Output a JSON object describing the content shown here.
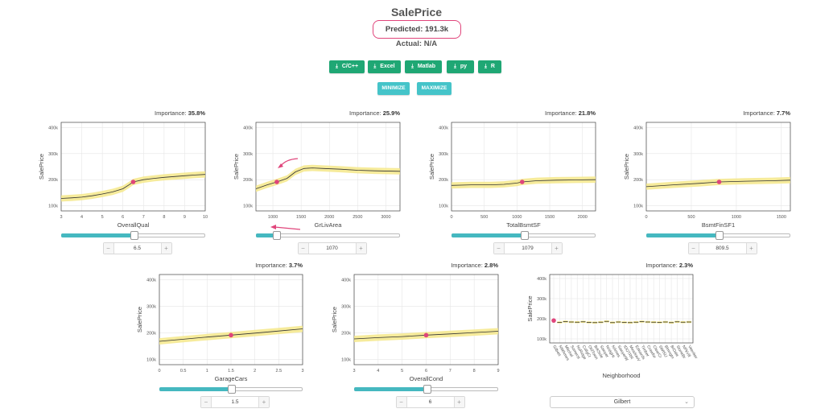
{
  "header": {
    "title": "SalePrice",
    "predicted": "Predicted: 191.3k",
    "actual": "Actual: N/A"
  },
  "export_buttons": [
    {
      "label": "C/C++",
      "icon": "download-icon"
    },
    {
      "label": "Excel",
      "icon": "download-icon"
    },
    {
      "label": "Matlab",
      "icon": "download-icon"
    },
    {
      "label": "py",
      "icon": "download-icon"
    },
    {
      "label": "R",
      "icon": "download-icon"
    }
  ],
  "control_buttons": {
    "minimize": "MINIMIZE",
    "maximize": "MAXIMIZE"
  },
  "colors": {
    "accent_green": "#1fa774",
    "accent_teal": "#45c4c9",
    "marker": "#e0457b",
    "band": "#f5e88a",
    "line": "#333333"
  },
  "chart_data": [
    {
      "type": "line",
      "id": "OverallQual",
      "importance_label": "Importance:",
      "importance": "35.8%",
      "xlabel": "OverallQual",
      "ylabel": "SalePrice",
      "xlim": [
        3,
        10
      ],
      "ylim": [
        80000,
        420000
      ],
      "xticks": [
        3,
        4,
        5,
        6,
        7,
        8,
        9,
        10
      ],
      "xtick_labels": [
        "3",
        "4",
        "5",
        "6",
        "7",
        "8",
        "9",
        "10"
      ],
      "yticks": [
        100000,
        200000,
        300000,
        400000
      ],
      "ytick_labels": [
        "100k",
        "200k",
        "300k",
        "400k"
      ],
      "x": [
        3,
        3.5,
        4,
        4.5,
        5,
        5.5,
        6,
        6.3,
        6.5,
        7,
        7.5,
        8,
        8.5,
        9,
        9.5,
        10
      ],
      "y": [
        128000,
        130000,
        133000,
        138000,
        145000,
        153000,
        165000,
        180000,
        191300,
        200000,
        205000,
        209000,
        212000,
        215000,
        218000,
        220000
      ],
      "band": 12000,
      "current": {
        "x": 6.5,
        "y": 191300
      },
      "control": {
        "type": "slider-stepper",
        "value": "6.5",
        "fraction": 0.5
      }
    },
    {
      "type": "line",
      "id": "GrLivArea",
      "importance_label": "Importance:",
      "importance": "25.9%",
      "xlabel": "GrLivArea",
      "ylabel": "SalePrice",
      "xlim": [
        700,
        3250
      ],
      "ylim": [
        80000,
        420000
      ],
      "xticks": [
        1000,
        1500,
        2000,
        2500,
        3000
      ],
      "xtick_labels": [
        "1000",
        "1500",
        "2000",
        "2500",
        "3000"
      ],
      "yticks": [
        100000,
        200000,
        300000,
        400000
      ],
      "ytick_labels": [
        "100k",
        "200k",
        "300k",
        "400k"
      ],
      "x": [
        700,
        900,
        1070,
        1250,
        1400,
        1550,
        1700,
        1900,
        2200,
        2500,
        2800,
        3250
      ],
      "y": [
        165000,
        180000,
        191300,
        205000,
        230000,
        243000,
        245000,
        243000,
        240000,
        236000,
        234000,
        232000
      ],
      "band": 12000,
      "current": {
        "x": 1070,
        "y": 191300
      },
      "control": {
        "type": "slider-stepper",
        "value": "1070",
        "fraction": 0.14
      }
    },
    {
      "type": "line",
      "id": "TotalBsmtSF",
      "importance_label": "Importance:",
      "importance": "21.8%",
      "xlabel": "TotalBsmtSF",
      "ylabel": "SalePrice",
      "xlim": [
        0,
        2200
      ],
      "ylim": [
        80000,
        420000
      ],
      "xticks": [
        0,
        500,
        1000,
        1500,
        2000
      ],
      "xtick_labels": [
        "0",
        "500",
        "1000",
        "1500",
        "2000"
      ],
      "yticks": [
        100000,
        200000,
        300000,
        400000
      ],
      "ytick_labels": [
        "100k",
        "200k",
        "300k",
        "400k"
      ],
      "x": [
        0,
        300,
        600,
        800,
        1000,
        1079,
        1300,
        1600,
        1900,
        2200
      ],
      "y": [
        178000,
        180000,
        180000,
        182000,
        187000,
        191300,
        196000,
        198000,
        199000,
        200000
      ],
      "band": 12000,
      "current": {
        "x": 1079,
        "y": 191300
      },
      "control": {
        "type": "slider-stepper",
        "value": "1079",
        "fraction": 0.5
      }
    },
    {
      "type": "line",
      "id": "BsmtFinSF1",
      "importance_label": "Importance:",
      "importance": "7.7%",
      "xlabel": "BsmtFinSF1",
      "ylabel": "SalePrice",
      "xlim": [
        0,
        1600
      ],
      "ylim": [
        80000,
        420000
      ],
      "xticks": [
        0,
        500,
        1000,
        1500
      ],
      "xtick_labels": [
        "0",
        "500",
        "1000",
        "1500"
      ],
      "yticks": [
        100000,
        200000,
        300000,
        400000
      ],
      "ytick_labels": [
        "100k",
        "200k",
        "300k",
        "400k"
      ],
      "x": [
        0,
        300,
        600,
        809.5,
        1100,
        1400,
        1600
      ],
      "y": [
        173000,
        180000,
        186000,
        191300,
        194000,
        196000,
        198000
      ],
      "band": 12000,
      "current": {
        "x": 809.5,
        "y": 191300
      },
      "control": {
        "type": "slider-stepper",
        "value": "809.5",
        "fraction": 0.5
      }
    },
    {
      "type": "line",
      "id": "GarageCars",
      "importance_label": "Importance:",
      "importance": "3.7%",
      "xlabel": "GarageCars",
      "ylabel": "SalePrice",
      "xlim": [
        0,
        3
      ],
      "ylim": [
        80000,
        420000
      ],
      "xticks": [
        0,
        0.5,
        1,
        1.5,
        2,
        2.5,
        3
      ],
      "xtick_labels": [
        "0",
        "0.5",
        "1",
        "1.5",
        "2",
        "2.5",
        "3"
      ],
      "yticks": [
        100000,
        200000,
        300000,
        400000
      ],
      "ytick_labels": [
        "100k",
        "200k",
        "300k",
        "400k"
      ],
      "x": [
        0,
        0.5,
        1,
        1.5,
        2,
        2.5,
        3
      ],
      "y": [
        168000,
        176000,
        184000,
        191300,
        199000,
        207000,
        215000
      ],
      "band": 12000,
      "current": {
        "x": 1.5,
        "y": 191300
      },
      "control": {
        "type": "slider-stepper",
        "value": "1.5",
        "fraction": 0.5
      }
    },
    {
      "type": "line",
      "id": "OverallCond",
      "importance_label": "Importance:",
      "importance": "2.8%",
      "xlabel": "OverallCond",
      "ylabel": "SalePrice",
      "xlim": [
        3,
        9
      ],
      "ylim": [
        80000,
        420000
      ],
      "xticks": [
        3,
        4,
        5,
        6,
        7,
        8,
        9
      ],
      "xtick_labels": [
        "3",
        "4",
        "5",
        "6",
        "7",
        "8",
        "9"
      ],
      "yticks": [
        100000,
        200000,
        300000,
        400000
      ],
      "ytick_labels": [
        "100k",
        "200k",
        "300k",
        "400k"
      ],
      "x": [
        3,
        4,
        5,
        6,
        7,
        8,
        9
      ],
      "y": [
        177000,
        182000,
        186000,
        191300,
        196000,
        201000,
        206000
      ],
      "band": 12000,
      "current": {
        "x": 6,
        "y": 191300
      },
      "control": {
        "type": "slider-stepper",
        "value": "6",
        "fraction": 0.5
      }
    },
    {
      "type": "scatter",
      "id": "Neighborhood",
      "importance_label": "Importance:",
      "importance": "2.3%",
      "xlabel": "Neighborhood",
      "ylabel": "SalePrice",
      "ylim": [
        80000,
        420000
      ],
      "yticks": [
        100000,
        200000,
        300000,
        400000
      ],
      "ytick_labels": [
        "100k",
        "200k",
        "300k",
        "400k"
      ],
      "categories": [
        "Gilbert",
        "NWAmes",
        "Mitchel",
        "Somerst",
        "NoRidge",
        "CollgCr",
        "OldTown",
        "BrkSide",
        "Sawyer",
        "NridgHt",
        "NAmes",
        "SawyerW",
        "IDOTRR",
        "MeadowV",
        "Edwards",
        "Timber",
        "Crawfor",
        "ClearCr",
        "SWISU",
        "Blmngtn",
        "BrDale",
        "StoneBr",
        "NPkVill",
        "Veenker"
      ],
      "values": [
        191300,
        182000,
        186000,
        184000,
        183000,
        185000,
        182000,
        181000,
        183000,
        187000,
        181000,
        184000,
        182000,
        181000,
        183000,
        186000,
        184000,
        183000,
        182000,
        184000,
        181000,
        185000,
        183000,
        184000
      ],
      "band": 5000,
      "current": {
        "category": "Gilbert",
        "y": 191300
      },
      "control": {
        "type": "select",
        "value": "Gilbert"
      }
    }
  ]
}
